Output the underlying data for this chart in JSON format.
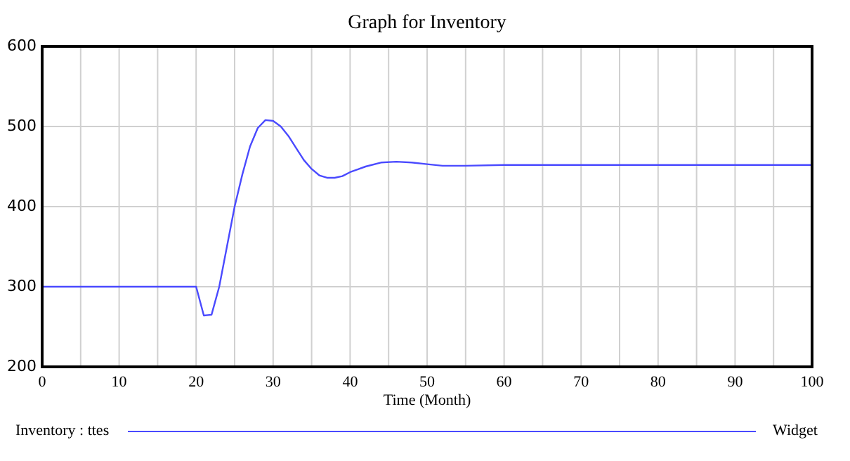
{
  "chart_data": {
    "type": "line",
    "title": "Graph for Inventory",
    "xlabel": "Time (Month)",
    "series": [
      {
        "name": "Inventory : ttes",
        "color": "#4a4aff",
        "x": [
          0,
          20,
          21,
          22,
          23,
          24,
          25,
          26,
          27,
          28,
          29,
          30,
          31,
          32,
          33,
          34,
          35,
          36,
          37,
          38,
          39,
          40,
          42,
          44,
          46,
          48,
          50,
          52,
          55,
          60,
          100
        ],
        "values": [
          300,
          300,
          264,
          265,
          300,
          350,
          400,
          440,
          475,
          498,
          508,
          507,
          500,
          488,
          473,
          458,
          447,
          439,
          436,
          436,
          438,
          443,
          450,
          455,
          456,
          455,
          453,
          451,
          451,
          452,
          452
        ]
      }
    ],
    "xlim": [
      0,
      100
    ],
    "xticks": [
      0,
      10,
      20,
      30,
      40,
      50,
      60,
      70,
      80,
      90,
      100
    ],
    "ylim": [
      200,
      600
    ],
    "yticks": [
      200,
      300,
      400,
      500,
      600
    ],
    "grid": true,
    "legend": "bottom",
    "annotations": [
      "Widget"
    ]
  }
}
